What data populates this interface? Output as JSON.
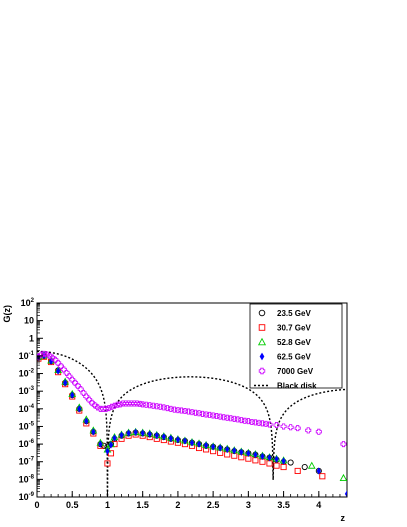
{
  "chart_data": {
    "type": "scatter",
    "title": "",
    "xlabel": "z",
    "ylabel": "G(z)",
    "xlim": [
      0,
      4.4
    ],
    "ylim": [
      1e-09,
      100
    ],
    "yscale": "log",
    "xticks": [
      0,
      0.5,
      1,
      1.5,
      2,
      2.5,
      3,
      3.5,
      4
    ],
    "xtick_labels": [
      "0",
      "0.5",
      "1",
      "1.5",
      "2",
      "2.5",
      "3",
      "3.5",
      "4"
    ],
    "yticks": [
      {
        "base": "10",
        "exp": "-9"
      },
      {
        "base": "10",
        "exp": "-8"
      },
      {
        "base": "10",
        "exp": "-7"
      },
      {
        "base": "10",
        "exp": "-6"
      },
      {
        "base": "10",
        "exp": "-5"
      },
      {
        "base": "10",
        "exp": "-4"
      },
      {
        "base": "10",
        "exp": "-3"
      },
      {
        "base": "10",
        "exp": "-2"
      },
      {
        "base": "10",
        "exp": "-1"
      },
      {
        "base": "1",
        "exp": ""
      },
      {
        "base": "10",
        "exp": ""
      },
      {
        "base": "10",
        "exp": "2"
      }
    ],
    "ytick_values": [
      -9,
      -8,
      -7,
      -6,
      -5,
      -4,
      -3,
      -2,
      -1,
      0,
      1,
      2
    ],
    "legend_position": "top-right",
    "grid": false,
    "series": [
      {
        "name": "23.5 GeV",
        "marker": "circle",
        "color": "#000000",
        "x": [
          0.02,
          0.1,
          0.2,
          0.3,
          0.4,
          0.5,
          0.6,
          0.7,
          0.8,
          0.9,
          0.95,
          1.0,
          1.05,
          1.1,
          1.2,
          1.3,
          1.4,
          1.5,
          1.6,
          1.7,
          1.8,
          1.9,
          2.0,
          2.1,
          2.2,
          2.3,
          2.4,
          2.5,
          2.6,
          2.7,
          2.8,
          2.9,
          3.0,
          3.1,
          3.2,
          3.3,
          3.4,
          3.5,
          3.6,
          3.8,
          4.0
        ],
        "y": [
          0.08,
          0.1,
          0.05,
          0.015,
          0.003,
          0.0006,
          0.0001,
          2e-05,
          5e-06,
          1e-06,
          8e-07,
          7e-07,
          1e-06,
          2e-06,
          3e-06,
          4e-06,
          4.5e-06,
          4e-06,
          3.5e-06,
          3e-06,
          2.5e-06,
          2e-06,
          1.7e-06,
          1.5e-06,
          1.2e-06,
          1e-06,
          8e-07,
          7e-07,
          6e-07,
          5e-07,
          4e-07,
          3.5e-07,
          3e-07,
          2.5e-07,
          2e-07,
          1.7e-07,
          1.3e-07,
          1e-07,
          9e-08,
          5e-08,
          3e-08
        ]
      },
      {
        "name": "30.7 GeV",
        "marker": "square",
        "color": "#ff0000",
        "x": [
          0.02,
          0.1,
          0.2,
          0.3,
          0.4,
          0.5,
          0.6,
          0.7,
          0.8,
          0.9,
          1.0,
          1.05,
          1.1,
          1.2,
          1.3,
          1.4,
          1.5,
          1.6,
          1.7,
          1.8,
          1.9,
          2.0,
          2.1,
          2.2,
          2.3,
          2.4,
          2.5,
          2.6,
          2.7,
          2.8,
          2.9,
          3.0,
          3.1,
          3.2,
          3.3,
          3.4,
          3.5,
          3.7,
          4.05
        ],
        "y": [
          0.07,
          0.09,
          0.045,
          0.012,
          0.0025,
          0.0005,
          8e-05,
          1.5e-05,
          4e-06,
          8e-07,
          8e-08,
          3e-07,
          1e-06,
          2e-06,
          3e-06,
          3.5e-06,
          3e-06,
          2.5e-06,
          2e-06,
          1.7e-06,
          1.4e-06,
          1.2e-06,
          1e-06,
          8e-07,
          6e-07,
          5e-07,
          4e-07,
          3.2e-07,
          2.6e-07,
          2.2e-07,
          1.8e-07,
          1.5e-07,
          1.2e-07,
          1e-07,
          8e-08,
          6e-08,
          5e-08,
          3e-08,
          1.5e-08
        ]
      },
      {
        "name": "52.8 GeV",
        "marker": "triangle",
        "color": "#00cc00",
        "x": [
          0.02,
          0.1,
          0.2,
          0.3,
          0.4,
          0.5,
          0.6,
          0.7,
          0.8,
          0.9,
          1.0,
          1.05,
          1.1,
          1.2,
          1.3,
          1.4,
          1.5,
          1.6,
          1.7,
          1.8,
          1.9,
          2.0,
          2.1,
          2.2,
          2.3,
          2.4,
          2.5,
          2.6,
          2.7,
          2.8,
          2.9,
          3.0,
          3.1,
          3.2,
          3.3,
          3.4,
          3.5,
          3.9,
          4.35
        ],
        "y": [
          0.09,
          0.11,
          0.055,
          0.016,
          0.0035,
          0.0007,
          0.00012,
          2.5e-05,
          6e-06,
          1.2e-06,
          5e-07,
          1e-06,
          2.5e-06,
          3.5e-06,
          4.5e-06,
          5e-06,
          4.5e-06,
          4e-06,
          3.3e-06,
          2.8e-06,
          2.3e-06,
          1.9e-06,
          1.6e-06,
          1.3e-06,
          1.1e-06,
          9e-07,
          7.5e-07,
          6.5e-07,
          5.5e-07,
          4.5e-07,
          3.8e-07,
          3.2e-07,
          2.7e-07,
          2.2e-07,
          1.8e-07,
          1.5e-07,
          1.2e-07,
          6e-08,
          1.2e-08
        ]
      },
      {
        "name": "62.5 GeV",
        "marker": "diamond",
        "color": "#0000ff",
        "x": [
          0.02,
          0.1,
          0.2,
          0.3,
          0.4,
          0.5,
          0.6,
          0.7,
          0.8,
          0.9,
          1.0,
          1.05,
          1.1,
          1.2,
          1.3,
          1.4,
          1.5,
          1.6,
          1.7,
          1.8,
          1.9,
          2.0,
          2.1,
          2.2,
          2.3,
          2.4,
          2.5,
          2.6,
          2.7,
          2.8,
          2.9,
          3.0,
          3.1,
          3.2,
          3.3,
          3.4,
          3.5,
          4.0,
          4.4
        ],
        "y": [
          0.085,
          0.105,
          0.05,
          0.014,
          0.003,
          0.0006,
          0.0001,
          2e-05,
          5e-06,
          1e-06,
          4e-07,
          9e-07,
          2.2e-06,
          3.2e-06,
          4.2e-06,
          4.7e-06,
          4.2e-06,
          3.7e-06,
          3.1e-06,
          2.6e-06,
          2.1e-06,
          1.8e-06,
          1.5e-06,
          1.2e-06,
          1e-06,
          8.5e-07,
          7e-07,
          6e-07,
          5e-07,
          4.2e-07,
          3.5e-07,
          3e-07,
          2.5e-07,
          2e-07,
          1.7e-07,
          1.4e-07,
          1.1e-07,
          3e-08,
          1.5e-09
        ]
      },
      {
        "name": "7000 GeV",
        "marker": "cross",
        "color": "#cc00ff",
        "x": [
          0.02,
          0.06,
          0.1,
          0.14,
          0.18,
          0.22,
          0.26,
          0.3,
          0.34,
          0.38,
          0.42,
          0.46,
          0.5,
          0.54,
          0.58,
          0.62,
          0.66,
          0.7,
          0.74,
          0.78,
          0.82,
          0.86,
          0.9,
          0.94,
          0.98,
          1.02,
          1.06,
          1.1,
          1.14,
          1.18,
          1.22,
          1.26,
          1.3,
          1.34,
          1.38,
          1.42,
          1.46,
          1.5,
          1.55,
          1.6,
          1.65,
          1.7,
          1.75,
          1.8,
          1.85,
          1.9,
          1.95,
          2.0,
          2.05,
          2.1,
          2.15,
          2.2,
          2.25,
          2.3,
          2.35,
          2.4,
          2.45,
          2.5,
          2.55,
          2.6,
          2.65,
          2.7,
          2.75,
          2.8,
          2.85,
          2.9,
          2.95,
          3.0,
          3.05,
          3.1,
          3.15,
          3.2,
          3.25,
          3.3,
          3.4,
          3.5,
          3.6,
          3.7,
          3.85,
          4.0,
          4.35
        ],
        "y": [
          0.09,
          0.12,
          0.13,
          0.12,
          0.1,
          0.08,
          0.06,
          0.04,
          0.026,
          0.017,
          0.011,
          0.007,
          0.0045,
          0.003,
          0.002,
          0.0013,
          0.0008,
          0.0005,
          0.00033,
          0.00022,
          0.00016,
          0.00012,
          0.0001,
          0.0001,
          0.0001,
          0.00011,
          0.00013,
          0.00015,
          0.00017,
          0.00018,
          0.0002,
          0.0002,
          0.0002,
          0.0002,
          0.0002,
          0.0002,
          0.00019,
          0.00018,
          0.00017,
          0.00016,
          0.00015,
          0.00014,
          0.00013,
          0.00012,
          0.00011,
          0.0001,
          9e-05,
          8.5e-05,
          8e-05,
          7.5e-05,
          7e-05,
          6.5e-05,
          6e-05,
          5.6e-05,
          5.2e-05,
          4.8e-05,
          4.5e-05,
          4.2e-05,
          3.9e-05,
          3.6e-05,
          3.3e-05,
          3.1e-05,
          2.9e-05,
          2.7e-05,
          2.5e-05,
          2.3e-05,
          2.1e-05,
          2e-05,
          1.8e-05,
          1.7e-05,
          1.6e-05,
          1.5e-05,
          1.4e-05,
          1.3e-05,
          1.2e-05,
          1e-05,
          9e-06,
          8e-06,
          6e-06,
          5e-06,
          1e-06
        ]
      },
      {
        "name": "Black disk",
        "marker": "dashed-line",
        "color": "#000000",
        "curve": "black-disk",
        "x": [
          0.0,
          1.0,
          3.35
        ],
        "y": [
          0.18,
          0.0,
          0.0
        ]
      }
    ]
  }
}
